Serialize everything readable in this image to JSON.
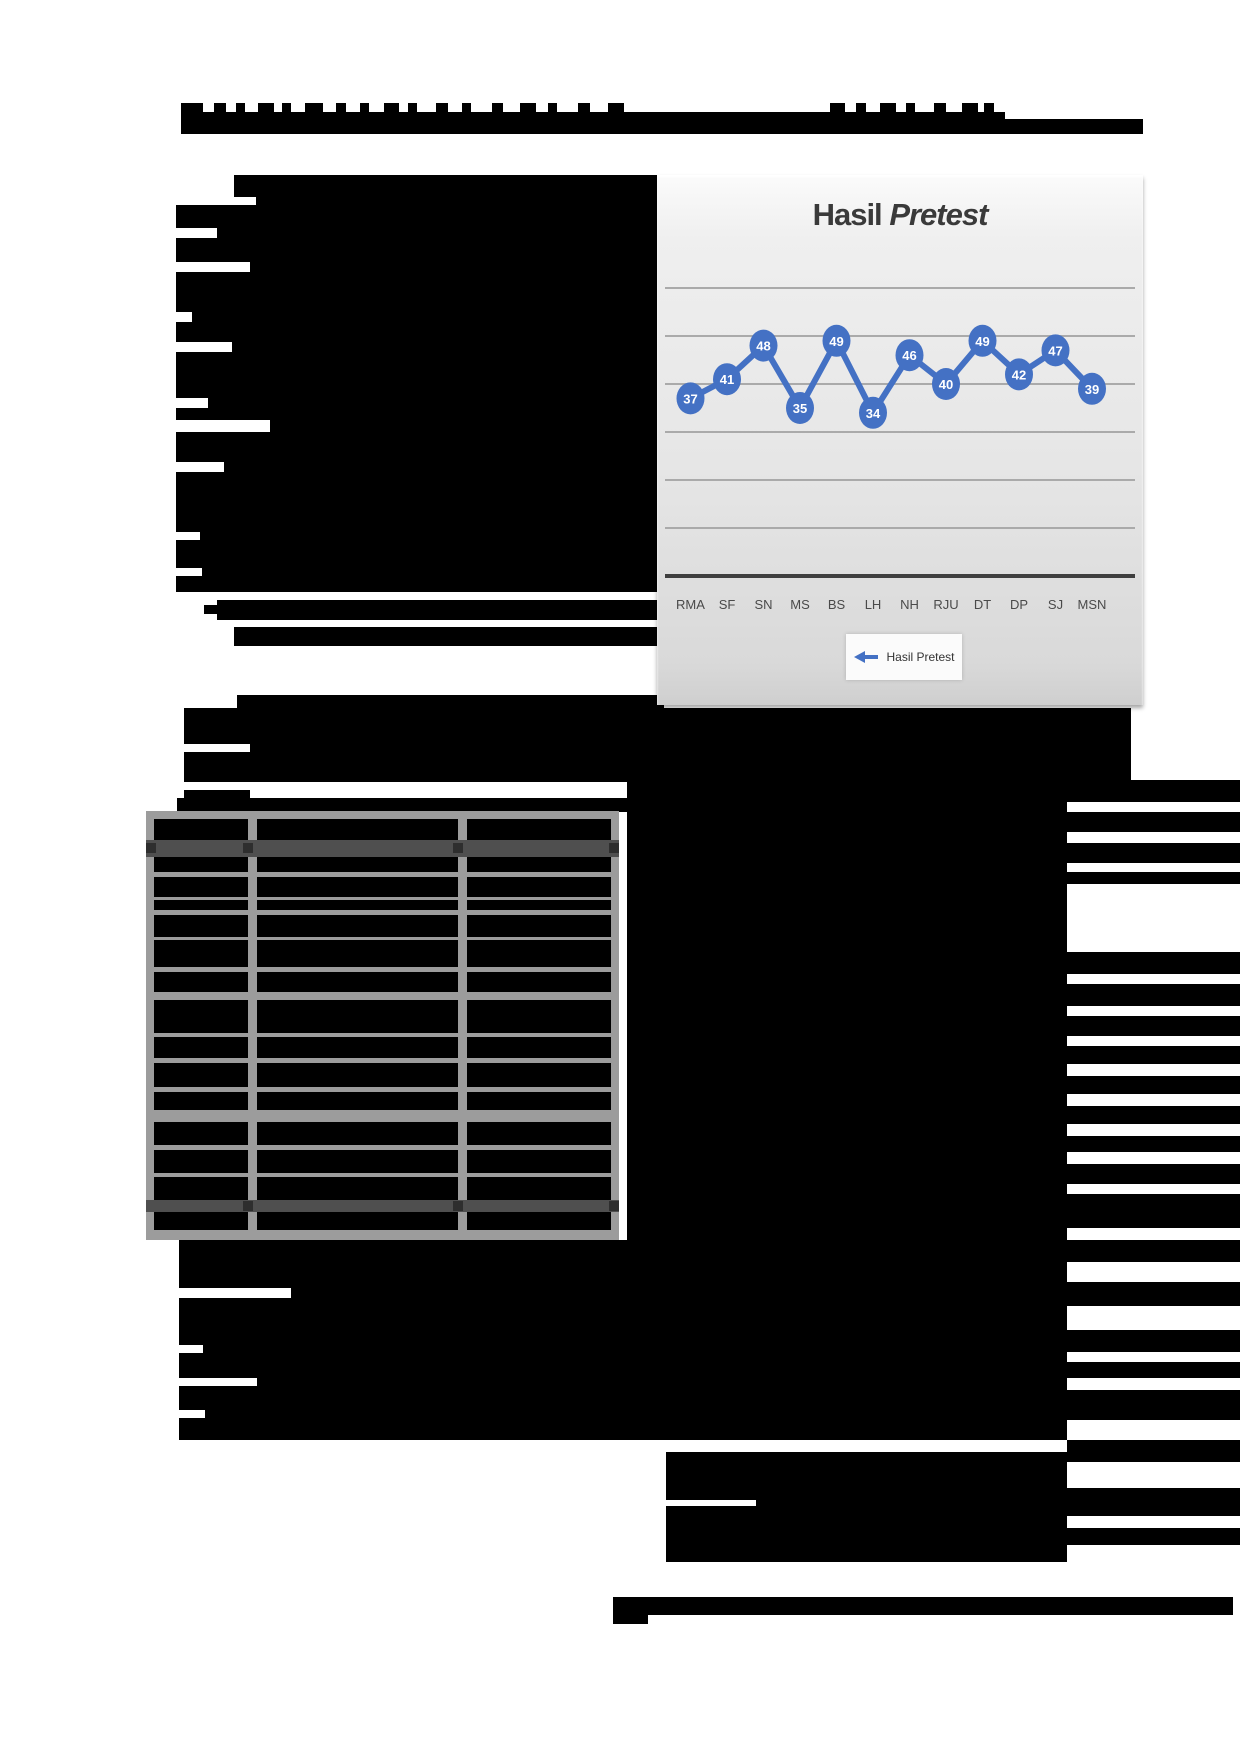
{
  "document": {
    "description": "Scanned thesis page; all body text, heading and table contents are redacted with black bars",
    "heading_redacted": true,
    "table": {
      "columns": 3,
      "rows_visible": 15,
      "content_redacted": true,
      "border_color": "#9c9c9c",
      "highlight_band_color": "#4f4f4f"
    }
  },
  "chart_data": {
    "type": "line",
    "title": "Hasil Pretest",
    "title_main": "Hasil",
    "title_italic": "Pretest",
    "categories": [
      "RMA",
      "SF",
      "SN",
      "MS",
      "BS",
      "LH",
      "NH",
      "RJU",
      "DT",
      "DP",
      "SJ",
      "MSN"
    ],
    "values": [
      37,
      41,
      48,
      35,
      49,
      34,
      46,
      40,
      49,
      42,
      47,
      39
    ],
    "series_name": "Hasil Pretest",
    "legend_label": "Hasil Pretest",
    "legend_position": "bottom",
    "ylim": [
      0,
      60
    ],
    "gridline_step": 10,
    "y_axis_labels_visible": false,
    "data_labels": "white numbers inside point markers",
    "line_color": "#4471c4",
    "marker_color": "#4471c4",
    "background": "light gray gradient",
    "grid_on": true
  }
}
